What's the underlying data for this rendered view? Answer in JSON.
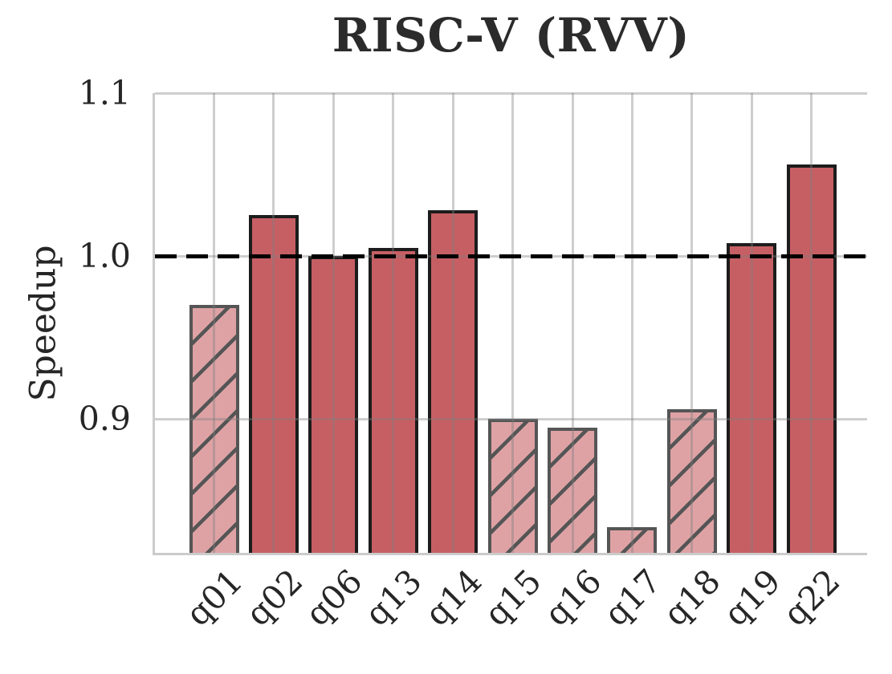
{
  "chart_data": {
    "type": "bar",
    "title": "RISC-V (RVV)",
    "ylabel": "Speedup",
    "xlabel": "",
    "categories": [
      "q01",
      "q02",
      "q06",
      "q13",
      "q14",
      "q15",
      "q16",
      "q17",
      "q18",
      "q19",
      "q22"
    ],
    "values": [
      0.97,
      1.025,
      1.0,
      1.005,
      1.028,
      0.9,
      0.895,
      0.834,
      0.906,
      1.008,
      1.056
    ],
    "hatched": [
      true,
      false,
      false,
      false,
      false,
      true,
      true,
      true,
      true,
      false,
      false
    ],
    "yticks": [
      1.1,
      1.0,
      0.9
    ],
    "ytick_labels": [
      "1.1",
      "1.0",
      "0.9"
    ],
    "ylim": [
      0.818,
      1.1
    ],
    "baseline": {
      "value": 1.0,
      "style": "dashed",
      "color": "#000000"
    },
    "grid": true,
    "legend": "none",
    "colors": {
      "solid_fill": "#c65f64",
      "solid_edge": "#1c1c1c",
      "hatched_fill": "#dea2a5",
      "hatched_edge": "#555555",
      "hatch_line": "#555555",
      "grid_color": "#d2d2d2",
      "baseline_color": "#000000",
      "text_color": "#262626",
      "title_color": "#2b2b2b"
    }
  }
}
